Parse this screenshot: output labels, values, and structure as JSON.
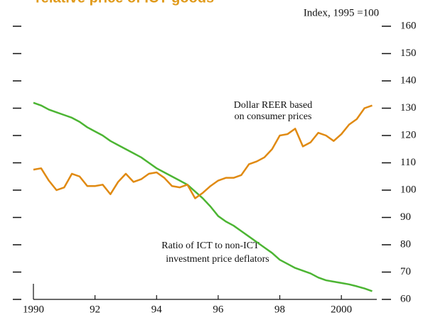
{
  "chart_data": {
    "type": "line",
    "title": "relative price of ICT goods",
    "y_axis_label": "Index, 1995 =100",
    "annotations": [
      "Dollar REER based",
      "on consumer prices",
      "Ratio of ICT to non-ICT",
      "investment price deflators"
    ],
    "x": [
      1990,
      1990.25,
      1990.5,
      1990.75,
      1991,
      1991.25,
      1991.5,
      1991.75,
      1992,
      1992.25,
      1992.5,
      1992.75,
      1993,
      1993.25,
      1993.5,
      1993.75,
      1994,
      1994.25,
      1994.5,
      1994.75,
      1995,
      1995.25,
      1995.5,
      1995.75,
      1996,
      1996.25,
      1996.5,
      1996.75,
      1997,
      1997.25,
      1997.5,
      1997.75,
      1998,
      1998.25,
      1998.5,
      1998.75,
      1999,
      1999.25,
      1999.5,
      1999.75,
      2000,
      2000.25,
      2000.5,
      2000.75,
      2001
    ],
    "series": [
      {
        "name": "Ratio of ICT to non-ICT investment price deflators",
        "color": "#4cb533",
        "values": [
          132,
          131,
          129.5,
          128.5,
          127.5,
          126.5,
          125,
          123,
          121.5,
          120,
          118,
          116.5,
          115,
          113.5,
          112,
          110,
          108,
          106.5,
          105,
          103.5,
          102,
          99.5,
          97,
          94,
          90.5,
          88.5,
          87,
          85,
          83,
          81,
          79,
          77,
          74.5,
          73,
          71.5,
          70.5,
          69.5,
          68,
          67,
          66.5,
          66,
          65.5,
          64.8,
          64,
          63
        ]
      },
      {
        "name": "Dollar REER based on consumer prices",
        "color": "#e08a12",
        "values": [
          107.5,
          108,
          103.5,
          100,
          101,
          106,
          105,
          101.5,
          101.5,
          102,
          98.5,
          103,
          106,
          103,
          104,
          106,
          106.5,
          104.5,
          101.5,
          101,
          102,
          97,
          99,
          101.5,
          103.5,
          104.5,
          104.5,
          105.5,
          109.5,
          110.5,
          112,
          115,
          120,
          120.5,
          122.5,
          116,
          117.5,
          121,
          120,
          118,
          120.5,
          124,
          126,
          130,
          131
        ]
      }
    ],
    "xlim": [
      1990,
      2001.15
    ],
    "xticks": [
      {
        "value": 1990,
        "label": "1990"
      },
      {
        "value": 1992,
        "label": "92"
      },
      {
        "value": 1994,
        "label": "94"
      },
      {
        "value": 1996,
        "label": "96"
      },
      {
        "value": 1998,
        "label": "98"
      },
      {
        "value": 2000,
        "label": "2000"
      }
    ],
    "ylim": [
      60,
      160
    ],
    "yticks": [
      60,
      70,
      80,
      90,
      100,
      110,
      120,
      130,
      140,
      150,
      160
    ]
  }
}
